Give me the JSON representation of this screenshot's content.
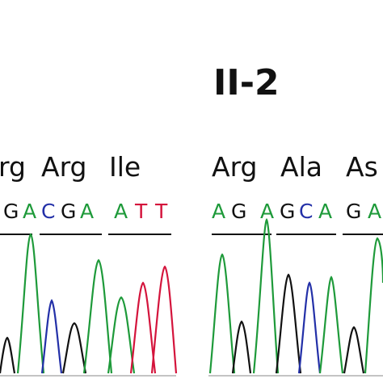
{
  "panel_label": "II-2",
  "colors": {
    "A": "#1e9a3a",
    "C": "#2330a8",
    "G": "#111111",
    "T": "#d4143c"
  },
  "left_panel": {
    "amino_acids": [
      "rg",
      "Arg",
      "Ile"
    ],
    "bases": [
      "G",
      "A",
      "C",
      "G",
      "A",
      "A",
      "T",
      "T"
    ]
  },
  "right_panel": {
    "amino_acids": [
      "Arg",
      "Ala",
      "As"
    ],
    "bases": [
      "A",
      "G",
      "A",
      "G",
      "C",
      "A",
      "G",
      "A"
    ]
  }
}
